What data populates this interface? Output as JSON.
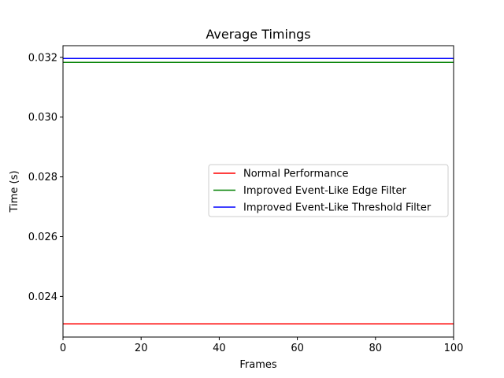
{
  "chart_data": {
    "type": "line",
    "title": "Average Timings",
    "xlabel": "Frames",
    "ylabel": "Time (s)",
    "xlim": [
      0,
      100
    ],
    "ylim": [
      0.02264,
      0.03239
    ],
    "xticks": [
      0,
      20,
      40,
      60,
      80,
      100
    ],
    "xtick_labels": [
      "0",
      "20",
      "40",
      "60",
      "80",
      "100"
    ],
    "yticks": [
      0.024,
      0.026,
      0.028,
      0.03,
      0.032
    ],
    "ytick_labels": [
      "0.024",
      "0.026",
      "0.028",
      "0.030",
      "0.032"
    ],
    "grid": false,
    "legend_position": "center-right",
    "series": [
      {
        "name": "Normal Performance",
        "color": "#ff0000",
        "x": [
          0,
          100
        ],
        "y": [
          0.02308,
          0.02308
        ]
      },
      {
        "name": "Improved Event-Like Edge Filter",
        "color": "#008000",
        "x": [
          0,
          100
        ],
        "y": [
          0.03183,
          0.03183
        ]
      },
      {
        "name": "Improved Event-Like Threshold Filter",
        "color": "#0000ff",
        "x": [
          0,
          100
        ],
        "y": [
          0.03196,
          0.03196
        ]
      }
    ]
  }
}
